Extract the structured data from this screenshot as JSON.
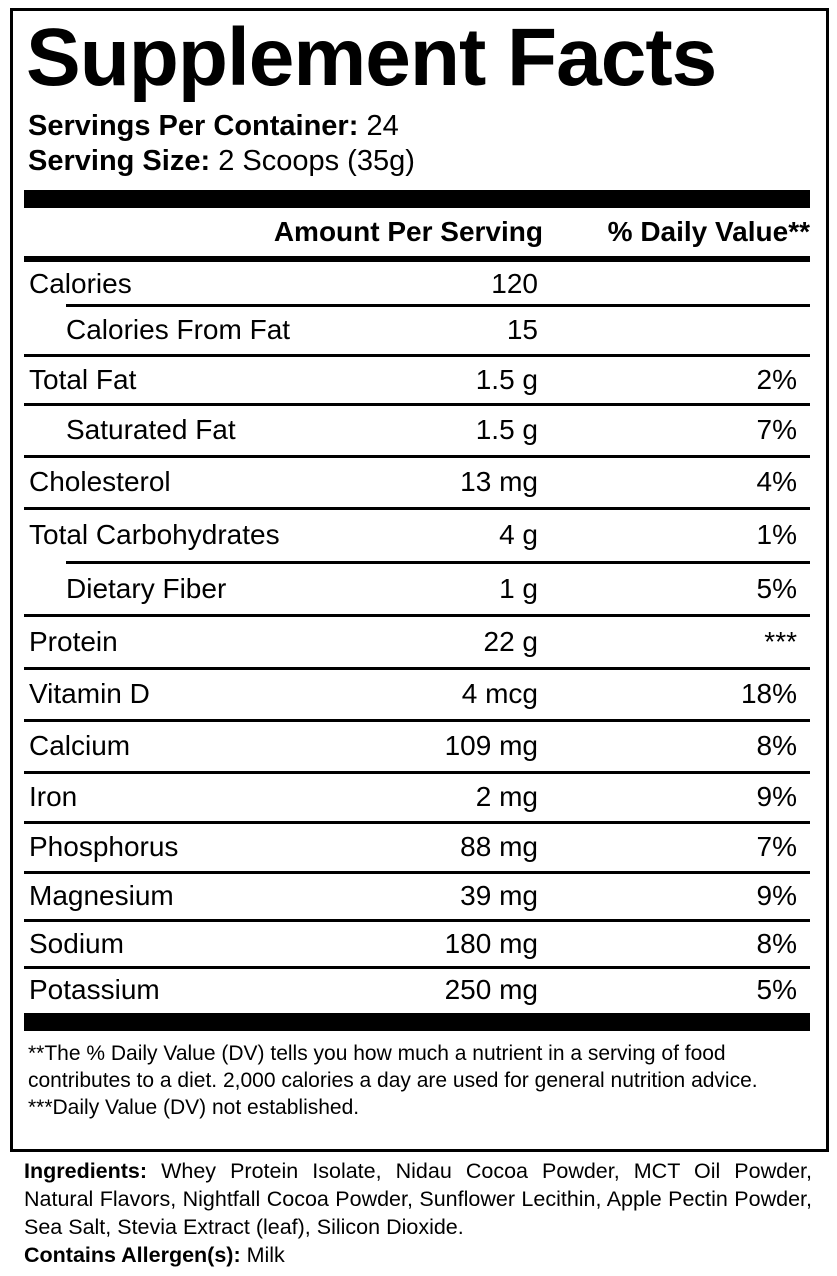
{
  "title": "Supplement Facts",
  "servings": {
    "per_container_label": "Servings Per Container:",
    "per_container_value": "24",
    "size_label": "Serving Size:",
    "size_value": "2 Scoops (35g)"
  },
  "header": {
    "amount": "Amount Per Serving",
    "dv": "% Daily Value**"
  },
  "rows": [
    {
      "label": "Calories",
      "amount": "120",
      "dv": "",
      "indent": false
    },
    {
      "label": "Calories From Fat",
      "amount": "15",
      "dv": "",
      "indent": true
    },
    {
      "label": "Total Fat",
      "amount": "1.5 g",
      "dv": "2%",
      "indent": false
    },
    {
      "label": "Saturated Fat",
      "amount": "1.5 g",
      "dv": "7%",
      "indent": true
    },
    {
      "label": "Cholesterol",
      "amount": "13 mg",
      "dv": "4%",
      "indent": false
    },
    {
      "label": "Total Carbohydrates",
      "amount": "4 g",
      "dv": "1%",
      "indent": false
    },
    {
      "label": "Dietary Fiber",
      "amount": "1 g",
      "dv": "5%",
      "indent": true
    },
    {
      "label": "Protein",
      "amount": "22 g",
      "dv": "***",
      "indent": false
    },
    {
      "label": "Vitamin D",
      "amount": "4 mcg",
      "dv": "18%",
      "indent": false
    },
    {
      "label": "Calcium",
      "amount": "109 mg",
      "dv": "8%",
      "indent": false
    },
    {
      "label": "Iron",
      "amount": "2 mg",
      "dv": "9%",
      "indent": false
    },
    {
      "label": "Phosphorus",
      "amount": "88 mg",
      "dv": "7%",
      "indent": false
    },
    {
      "label": "Magnesium",
      "amount": "39 mg",
      "dv": "9%",
      "indent": false
    },
    {
      "label": "Sodium",
      "amount": "180 mg",
      "dv": "8%",
      "indent": false
    },
    {
      "label": "Potassium",
      "amount": "250 mg",
      "dv": "5%",
      "indent": false
    }
  ],
  "footnotes": {
    "dv_note": "**The % Daily Value (DV) tells you how much a nutrient in a serving of food contributes to a diet. 2,000 calories a day are used for general nutrition advice.",
    "not_established": "***Daily Value (DV) not established."
  },
  "ingredients": {
    "label": "Ingredients:",
    "text": "Whey Protein Isolate, Nidau Cocoa Powder, MCT Oil Powder, Natural Flavors, Nightfall Cocoa Powder, Sunflower Lecithin, Apple Pectin Powder, Sea Salt, Stevia Extract (leaf), Silicon Dioxide.",
    "allergen_label": "Contains Allergen(s):",
    "allergen_value": "Milk"
  }
}
